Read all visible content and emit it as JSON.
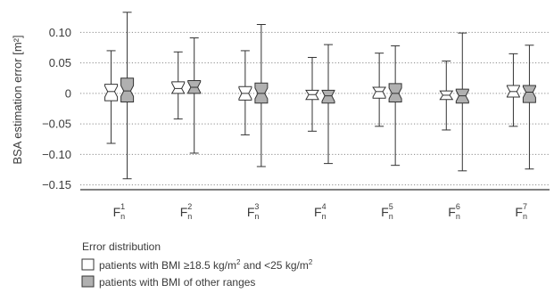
{
  "chart_data": {
    "type": "boxplot",
    "ylabel": "BSA estimation error [m²]",
    "ylim": [
      -0.155,
      0.14
    ],
    "yticks": [
      {
        "value": 0.1,
        "label": "0.10"
      },
      {
        "value": 0.05,
        "label": "0.05"
      },
      {
        "value": 0,
        "label": "0"
      },
      {
        "value": -0.05,
        "label": "-0.05"
      },
      {
        "value": -0.1,
        "label": "-0.10"
      },
      {
        "value": -0.15,
        "label": "-0.15"
      }
    ],
    "grid": "horizontal-dotted",
    "categories": [
      {
        "base": "F",
        "sub": "n",
        "sup": "1"
      },
      {
        "base": "F",
        "sub": "n",
        "sup": "2"
      },
      {
        "base": "F",
        "sub": "n",
        "sup": "3"
      },
      {
        "base": "F",
        "sub": "n",
        "sup": "4"
      },
      {
        "base": "F",
        "sub": "n",
        "sup": "5"
      },
      {
        "base": "F",
        "sub": "n",
        "sup": "6"
      },
      {
        "base": "F",
        "sub": "n",
        "sup": "7"
      }
    ],
    "series": [
      {
        "name": "patients with BMI ≥18.5 kg/m2 and <25 kg/m2",
        "color": "#ffffff",
        "boxes": [
          {
            "min": -0.082,
            "q1": -0.012,
            "median": 0.003,
            "q3": 0.015,
            "max": 0.07
          },
          {
            "min": -0.042,
            "q1": 0.0,
            "median": 0.008,
            "q3": 0.019,
            "max": 0.068
          },
          {
            "min": -0.068,
            "q1": -0.011,
            "median": 0.0,
            "q3": 0.011,
            "max": 0.07
          },
          {
            "min": -0.062,
            "q1": -0.01,
            "median": -0.002,
            "q3": 0.005,
            "max": 0.059
          },
          {
            "min": -0.054,
            "q1": -0.008,
            "median": 0.003,
            "q3": 0.01,
            "max": 0.066
          },
          {
            "min": -0.06,
            "q1": -0.01,
            "median": -0.003,
            "q3": 0.004,
            "max": 0.053
          },
          {
            "min": -0.054,
            "q1": -0.006,
            "median": 0.003,
            "q3": 0.013,
            "max": 0.065
          }
        ]
      },
      {
        "name": "patients with BMI of other ranges",
        "color": "#b0b0b0",
        "boxes": [
          {
            "min": -0.14,
            "q1": -0.014,
            "median": 0.004,
            "q3": 0.025,
            "max": 0.133
          },
          {
            "min": -0.098,
            "q1": 0.0,
            "median": 0.01,
            "q3": 0.021,
            "max": 0.091
          },
          {
            "min": -0.12,
            "q1": -0.016,
            "median": 0.0,
            "q3": 0.017,
            "max": 0.113
          },
          {
            "min": -0.115,
            "q1": -0.016,
            "median": -0.004,
            "q3": 0.005,
            "max": 0.08
          },
          {
            "min": -0.118,
            "q1": -0.014,
            "median": 0.0,
            "q3": 0.016,
            "max": 0.078
          },
          {
            "min": -0.127,
            "q1": -0.016,
            "median": -0.004,
            "q3": 0.007,
            "max": 0.099
          },
          {
            "min": -0.124,
            "q1": -0.015,
            "median": 0.002,
            "q3": 0.013,
            "max": 0.079
          }
        ]
      }
    ],
    "legend": {
      "title": "Error distribution",
      "entries": [
        {
          "main": "patients with BMI ≥18.5 kg/m",
          "sup1": "2",
          "mid": " and <25 kg/m",
          "sup2": "2",
          "color": "#ffffff"
        },
        {
          "main": "patients with BMI of other ranges",
          "color": "#b0b0b0"
        }
      ],
      "placement": "bottom-left"
    }
  }
}
